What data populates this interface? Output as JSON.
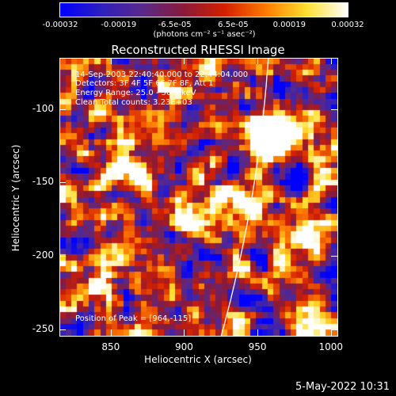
{
  "chart_data": {
    "type": "heatmap",
    "title": "Reconstructed RHESSI Image",
    "xlabel": "Heliocentric X (arcsec)",
    "ylabel": "Heliocentric Y (arcsec)",
    "xlim": [
      815,
      1005
    ],
    "ylim": [
      -255,
      -65
    ],
    "x_ticks": [
      "850",
      "900",
      "950",
      "1000"
    ],
    "x_tick_values": [
      850,
      900,
      950,
      1000
    ],
    "y_ticks": [
      "-100",
      "-150",
      "-200",
      "-250"
    ],
    "y_tick_values": [
      -100,
      -150,
      -200,
      -250
    ],
    "colorbar": {
      "ticks": [
        "-0.00032",
        "-0.00019",
        "-6.5e-05",
        "6.5e-05",
        "0.00019",
        "0.00032"
      ],
      "tick_values": [
        -0.00032,
        -0.00019,
        -6.5e-05,
        6.5e-05,
        0.00019,
        0.00032
      ],
      "range": [
        -0.00032,
        0.00032
      ],
      "unit": "(photons cm⁻² s⁻¹ asec⁻²)",
      "colormap": [
        "#0000ff",
        "#3020c0",
        "#5a2a8a",
        "#8a1a3a",
        "#d42000",
        "#ff7a00",
        "#ffe030",
        "#ffffff"
      ]
    },
    "annotations": [
      "14-Sep-2003 22:40:40.000 to 22:44:04.000",
      "Detectors: 3F 4F 5F 6F 7F 8F, Att 1",
      "Energy Range: 25.0 - 50.0 keV",
      "Clean    Total counts: 3.23E+03"
    ],
    "peak_label": "Position of Peak = [964,-115]",
    "peak": [
      964,
      -115
    ],
    "limb_color": "#ffffff"
  },
  "footer": {
    "date": "5-May-2022 10:31"
  }
}
